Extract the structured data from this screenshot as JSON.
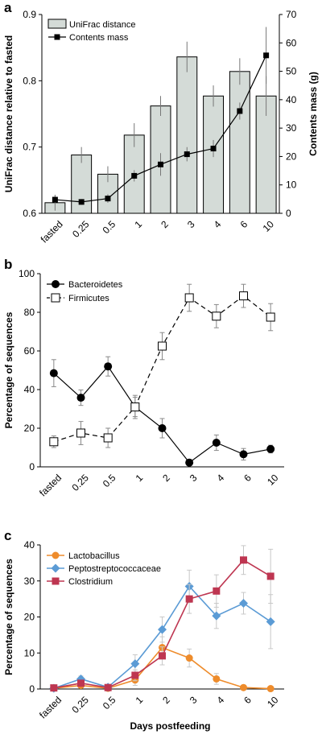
{
  "chart_data": [
    {
      "panel": "a",
      "type": "bar",
      "categories": [
        "fasted",
        "0.25",
        "0.5",
        "1",
        "2",
        "3",
        "4",
        "6",
        "10"
      ],
      "series": [
        {
          "name": "UniFrac distance",
          "type": "bar",
          "axis": "left",
          "values": [
            0.616,
            0.688,
            0.659,
            0.718,
            0.762,
            0.836,
            0.777,
            0.814,
            0.777
          ],
          "errors": [
            0.012,
            0.012,
            0.012,
            0.018,
            0.015,
            0.023,
            0.016,
            0.02,
            0.03
          ],
          "color": "#d4dbd7"
        },
        {
          "name": "Contents mass",
          "type": "line",
          "axis": "right",
          "values": [
            4.8,
            4.0,
            5.2,
            13.2,
            17.2,
            20.8,
            22.8,
            36.0,
            55.6
          ],
          "errors": [
            1.5,
            1.0,
            1.5,
            2.0,
            4.0,
            2.5,
            3.0,
            3.0,
            10.0
          ],
          "color": "#000000"
        }
      ],
      "ylabel": "UniFrac distance relative to fasted",
      "y2label": "Contents mass (g)",
      "ylim": [
        0.6,
        0.9
      ],
      "yticks": [
        "0.6",
        "0.7",
        "0.8",
        "0.9"
      ],
      "y2lim": [
        0,
        70
      ],
      "y2ticks": [
        "0",
        "10",
        "20",
        "30",
        "40",
        "50",
        "60",
        "70"
      ],
      "legend_position": "top-left"
    },
    {
      "panel": "b",
      "type": "line",
      "categories": [
        "fasted",
        "0.25",
        "0.5",
        "1",
        "2",
        "3",
        "4",
        "6",
        "10"
      ],
      "series": [
        {
          "name": "Bacteroidetes",
          "marker": "filled-circle",
          "style": "solid",
          "values": [
            48.5,
            35.8,
            52.0,
            31.0,
            20.0,
            2.2,
            12.5,
            6.5,
            9.2
          ],
          "errors": [
            7,
            4,
            5,
            5,
            5,
            1.5,
            4,
            3,
            2
          ]
        },
        {
          "name": "Firmicutes",
          "marker": "open-square",
          "style": "dashed",
          "values": [
            13.0,
            17.5,
            15.0,
            31.0,
            62.5,
            87.5,
            78.0,
            88.5,
            77.5
          ],
          "errors": [
            3,
            6,
            5,
            6,
            7,
            7,
            6,
            6,
            7
          ]
        }
      ],
      "ylabel": "Percentage of sequences",
      "ylim": [
        0,
        100
      ],
      "yticks": [
        "0",
        "20",
        "40",
        "60",
        "80",
        "100"
      ],
      "legend_position": "top-left"
    },
    {
      "panel": "c",
      "type": "line",
      "categories": [
        "fasted",
        "0.25",
        "0.5",
        "1",
        "2",
        "3",
        "4",
        "6",
        "10"
      ],
      "series": [
        {
          "name": "Lactobacillus",
          "marker": "circle",
          "color": "#ee8c2c",
          "values": [
            0.2,
            1.0,
            0.2,
            2.5,
            11.5,
            8.6,
            2.8,
            0.4,
            0.1
          ],
          "errors": [
            0.3,
            0.5,
            0.3,
            1.5,
            3.0,
            2.5,
            1.5,
            0.5,
            0.2
          ]
        },
        {
          "name": "Peptostreptococcaceae",
          "marker": "diamond",
          "color": "#5b9bd5",
          "values": [
            0.2,
            2.8,
            0.5,
            7.0,
            16.5,
            28.5,
            20.3,
            23.8,
            18.7
          ],
          "errors": [
            0.3,
            0.8,
            0.5,
            2.5,
            3.5,
            4.5,
            3.5,
            3.0,
            7.5
          ]
        },
        {
          "name": "Clostridium",
          "marker": "square",
          "color": "#be3651",
          "values": [
            0.3,
            1.6,
            0.4,
            3.8,
            9.2,
            25.0,
            27.2,
            35.8,
            31.3
          ],
          "errors": [
            0.3,
            0.5,
            0.3,
            1.5,
            2.5,
            4.0,
            4.5,
            4.0,
            7.5
          ]
        }
      ],
      "xlabel": "Days postfeeding",
      "ylabel": "Percentage of sequences",
      "ylim": [
        0,
        40
      ],
      "yticks": [
        "0",
        "10",
        "20",
        "30",
        "40"
      ],
      "legend_position": "top-left"
    }
  ]
}
